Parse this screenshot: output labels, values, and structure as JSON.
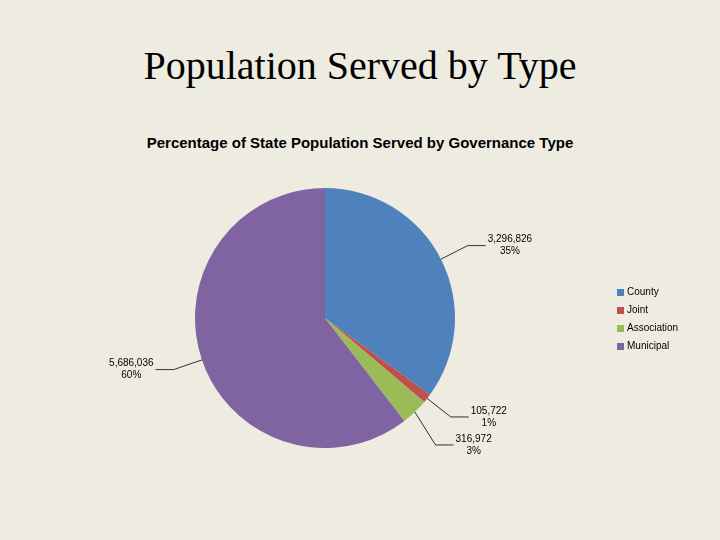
{
  "header": {
    "title": "Population Served by Type"
  },
  "chart_data": {
    "type": "pie",
    "title": "Percentage of State Population Served by Governance Type",
    "categories": [
      "County",
      "Joint",
      "Association",
      "Municipal"
    ],
    "values": [
      3296826,
      105722,
      316972,
      5686036
    ],
    "value_labels": [
      "3,296,826",
      "105,722",
      "316,972",
      "5,686,036"
    ],
    "percentages": [
      {
        "value": 35,
        "label": "35%"
      },
      {
        "value": 1,
        "label": "1%"
      },
      {
        "value": 3,
        "label": "3%"
      },
      {
        "value": 60,
        "label": "60%"
      }
    ],
    "colors": [
      "#4F81BD",
      "#C0504D",
      "#9BBB59",
      "#8064A2"
    ],
    "legend": "right",
    "data_labels": true
  }
}
